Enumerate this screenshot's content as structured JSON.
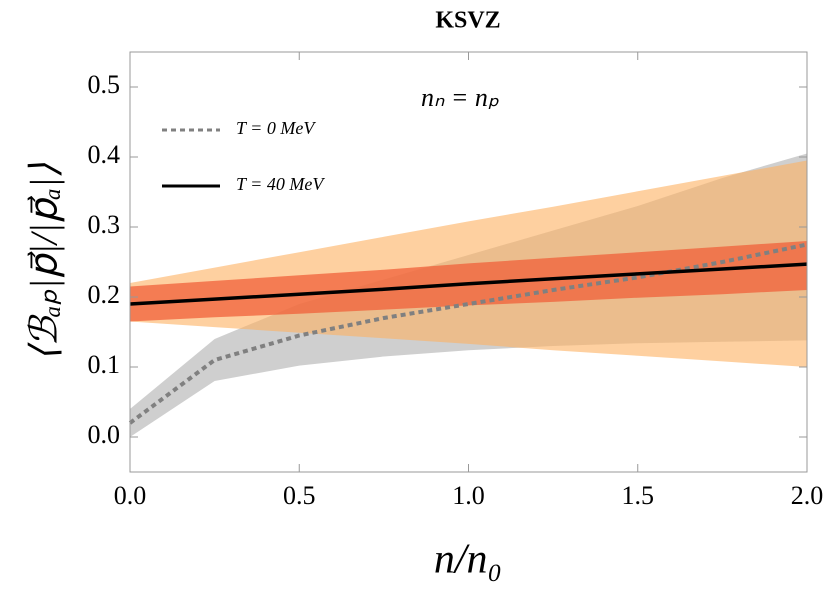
{
  "chart_data": {
    "type": "line",
    "title": "KSVZ",
    "annotation": "nₙ = nₚ",
    "x_label": "n/n₀",
    "y_label": "⟨ℬₐₚ|p⃗|/|p⃗ₐ|⟩",
    "x": [
      0,
      0.25,
      0.5,
      0.75,
      1,
      1.25,
      1.5,
      1.75,
      2
    ],
    "series": [
      {
        "name": "T = 0 MeV",
        "color": "#808080",
        "dash": true,
        "values": [
          0.02,
          0.11,
          0.145,
          0.17,
          0.19,
          0.21,
          0.228,
          0.25,
          0.275
        ]
      },
      {
        "name": "T = 40 MeV",
        "color": "#000000",
        "dash": false,
        "values": [
          0.19,
          0.197,
          0.204,
          0.211,
          0.219,
          0.226,
          0.233,
          0.24,
          0.247
        ]
      }
    ],
    "bands": [
      {
        "color": "#cfcfcf",
        "opacity": 1,
        "lower": [
          0.0,
          0.08,
          0.102,
          0.115,
          0.124,
          0.13,
          0.134,
          0.136,
          0.138
        ],
        "upper": [
          0.04,
          0.14,
          0.19,
          0.225,
          0.26,
          0.295,
          0.33,
          0.37,
          0.405
        ]
      },
      {
        "color": "#fdb061",
        "opacity": 0.6,
        "lower": [
          0.165,
          0.157,
          0.149,
          0.141,
          0.133,
          0.124,
          0.116,
          0.108,
          0.1
        ],
        "upper": [
          0.22,
          0.242,
          0.264,
          0.286,
          0.308,
          0.329,
          0.351,
          0.373,
          0.395
        ]
      },
      {
        "color": "#f0603a",
        "opacity": 0.75,
        "lower": [
          0.165,
          0.171,
          0.176,
          0.182,
          0.188,
          0.193,
          0.199,
          0.204,
          0.21
        ],
        "upper": [
          0.215,
          0.223,
          0.231,
          0.239,
          0.248,
          0.256,
          0.264,
          0.272,
          0.28
        ]
      }
    ],
    "xlim": [
      0,
      2
    ],
    "ylim": [
      -0.05,
      0.55
    ],
    "xticks": [
      {
        "value": 0,
        "label": "0.0"
      },
      0.5,
      {
        "value": 1,
        "label": "1.0"
      },
      1.5,
      {
        "value": 2,
        "label": "2.0"
      }
    ],
    "yticks": [
      {
        "value": 0,
        "label": "0.0"
      },
      0.1,
      0.2,
      0.3,
      0.4,
      0.5
    ],
    "legend": "upper left"
  }
}
